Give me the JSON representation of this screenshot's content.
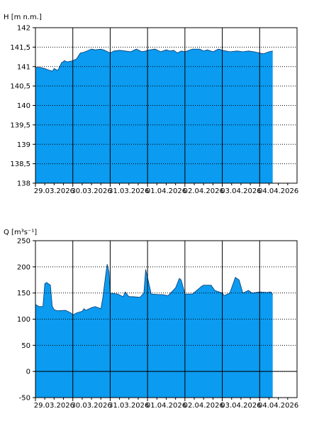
{
  "chart_data": [
    {
      "type": "area",
      "ylabel": "H [m n.m.]",
      "xlabel": "",
      "title": "",
      "ylim": [
        138,
        142
      ],
      "yticks": [
        138,
        138.5,
        139,
        139.5,
        140,
        140.5,
        141,
        141.5,
        142
      ],
      "ytick_labels": [
        "138",
        "138,5",
        "139",
        "139,5",
        "140",
        "140,5",
        "141",
        "141,5",
        "142"
      ],
      "xlim": [
        0,
        7
      ],
      "xtick_labels": [
        "29.03.2026",
        "30.03.2026",
        "31.03.2026",
        "01.04.2026",
        "02.04.2026",
        "03.04.2026",
        "04.04.2026"
      ],
      "fill_color": "#0b9bf0",
      "grid": true,
      "x_days": [
        0,
        0.1,
        0.25,
        0.3,
        0.45,
        0.5,
        0.6,
        0.7,
        0.78,
        0.85,
        1.0,
        1.1,
        1.2,
        1.3,
        1.5,
        1.6,
        1.75,
        1.85,
        2.0,
        2.1,
        2.25,
        2.4,
        2.55,
        2.7,
        2.85,
        2.95,
        3.0,
        3.2,
        3.35,
        3.5,
        3.6,
        3.7,
        3.8,
        3.9,
        4.0,
        4.2,
        4.4,
        4.5,
        4.6,
        4.75,
        4.9,
        5.0,
        5.2,
        5.4,
        5.55,
        5.7,
        5.85,
        6.0,
        6.1,
        6.25,
        6.35
      ],
      "values": [
        140.98,
        140.98,
        140.95,
        140.93,
        140.88,
        140.95,
        140.9,
        141.1,
        141.15,
        141.12,
        141.15,
        141.2,
        141.35,
        141.37,
        141.45,
        141.43,
        141.45,
        141.42,
        141.35,
        141.4,
        141.42,
        141.4,
        141.38,
        141.45,
        141.38,
        141.4,
        141.42,
        141.45,
        141.38,
        141.43,
        141.4,
        141.42,
        141.35,
        141.4,
        141.38,
        141.45,
        141.45,
        141.4,
        141.43,
        141.38,
        141.45,
        141.42,
        141.38,
        141.4,
        141.38,
        141.4,
        141.38,
        141.35,
        141.33,
        141.38,
        141.4
      ]
    },
    {
      "type": "area",
      "ylabel": "Q [m³s⁻¹]",
      "xlabel": "",
      "title": "",
      "ylim": [
        -50,
        250
      ],
      "yticks": [
        -50,
        0,
        50,
        100,
        150,
        200,
        250
      ],
      "ytick_labels": [
        "-50",
        "0",
        "50",
        "100",
        "150",
        "200",
        "250"
      ],
      "xlim": [
        0,
        7
      ],
      "xtick_labels": [
        "29.03.2026",
        "30.03.2026",
        "31.03.2026",
        "01.04.2026",
        "02.04.2026",
        "03.04.2026",
        "04.04.2026"
      ],
      "fill_color": "#0b9bf0",
      "grid": true,
      "x_days": [
        0,
        0.1,
        0.2,
        0.25,
        0.3,
        0.4,
        0.45,
        0.5,
        0.6,
        0.8,
        0.95,
        1.0,
        1.1,
        1.25,
        1.3,
        1.35,
        1.5,
        1.6,
        1.75,
        1.8,
        1.88,
        1.92,
        1.97,
        2.0,
        2.2,
        2.35,
        2.4,
        2.5,
        2.6,
        2.8,
        2.9,
        2.95,
        3.0,
        3.1,
        3.3,
        3.4,
        3.55,
        3.75,
        3.85,
        3.9,
        4.0,
        4.2,
        4.45,
        4.5,
        4.7,
        4.8,
        5.0,
        5.05,
        5.2,
        5.35,
        5.45,
        5.55,
        5.7,
        5.8,
        6.0,
        6.2,
        6.3,
        6.35
      ],
      "values": [
        128,
        124,
        124,
        168,
        170,
        165,
        125,
        118,
        116,
        117,
        112,
        108,
        112,
        115,
        120,
        117,
        122,
        124,
        120,
        140,
        185,
        205,
        190,
        150,
        148,
        143,
        152,
        143,
        143,
        142,
        150,
        195,
        180,
        148,
        147,
        147,
        145,
        160,
        178,
        175,
        148,
        148,
        163,
        165,
        165,
        155,
        150,
        145,
        150,
        180,
        175,
        150,
        155,
        150,
        152,
        151,
        152,
        147
      ]
    }
  ]
}
